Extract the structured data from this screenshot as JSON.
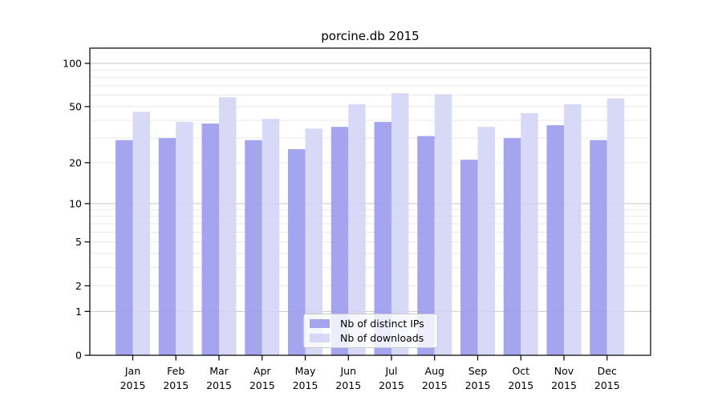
{
  "chart_data": {
    "type": "bar",
    "title": "porcine.db 2015",
    "categories": [
      "Jan 2015",
      "Feb 2015",
      "Mar 2015",
      "Apr 2015",
      "May 2015",
      "Jun 2015",
      "Jul 2015",
      "Aug 2015",
      "Sep 2015",
      "Oct 2015",
      "Nov 2015",
      "Dec 2015"
    ],
    "series": [
      {
        "name": "Nb of distinct IPs",
        "color": "#9898ed",
        "values": [
          29,
          30,
          38,
          29,
          25,
          36,
          39,
          31,
          21,
          30,
          37,
          29
        ]
      },
      {
        "name": "Nb of downloads",
        "color": "#d3d3f6",
        "values": [
          46,
          39,
          58,
          41,
          35,
          52,
          62,
          61,
          36,
          45,
          52,
          57
        ]
      }
    ],
    "xlabel": "",
    "ylabel": "",
    "ylim": [
      0,
      128
    ],
    "y_axis": {
      "scale": "symlog",
      "ticks": [
        0,
        1,
        2,
        5,
        10,
        20,
        50,
        100
      ],
      "tick_labels": [
        "0",
        "1",
        "2",
        "5",
        "10",
        "20",
        "50",
        "100"
      ]
    },
    "gridlines": {
      "major": [
        1,
        10,
        100
      ],
      "minor": [
        2,
        3,
        4,
        5,
        6,
        7,
        8,
        9,
        20,
        30,
        40,
        50,
        60,
        70,
        80,
        90
      ]
    },
    "legend": {
      "position": "lower center",
      "entries": [
        "Nb of distinct IPs",
        "Nb of downloads"
      ]
    },
    "colors": {
      "grid_major": "#c8c8c8",
      "grid_minor": "#e9e9e9",
      "axis": "#000000",
      "background": "#ffffff",
      "text": "#000000"
    }
  }
}
